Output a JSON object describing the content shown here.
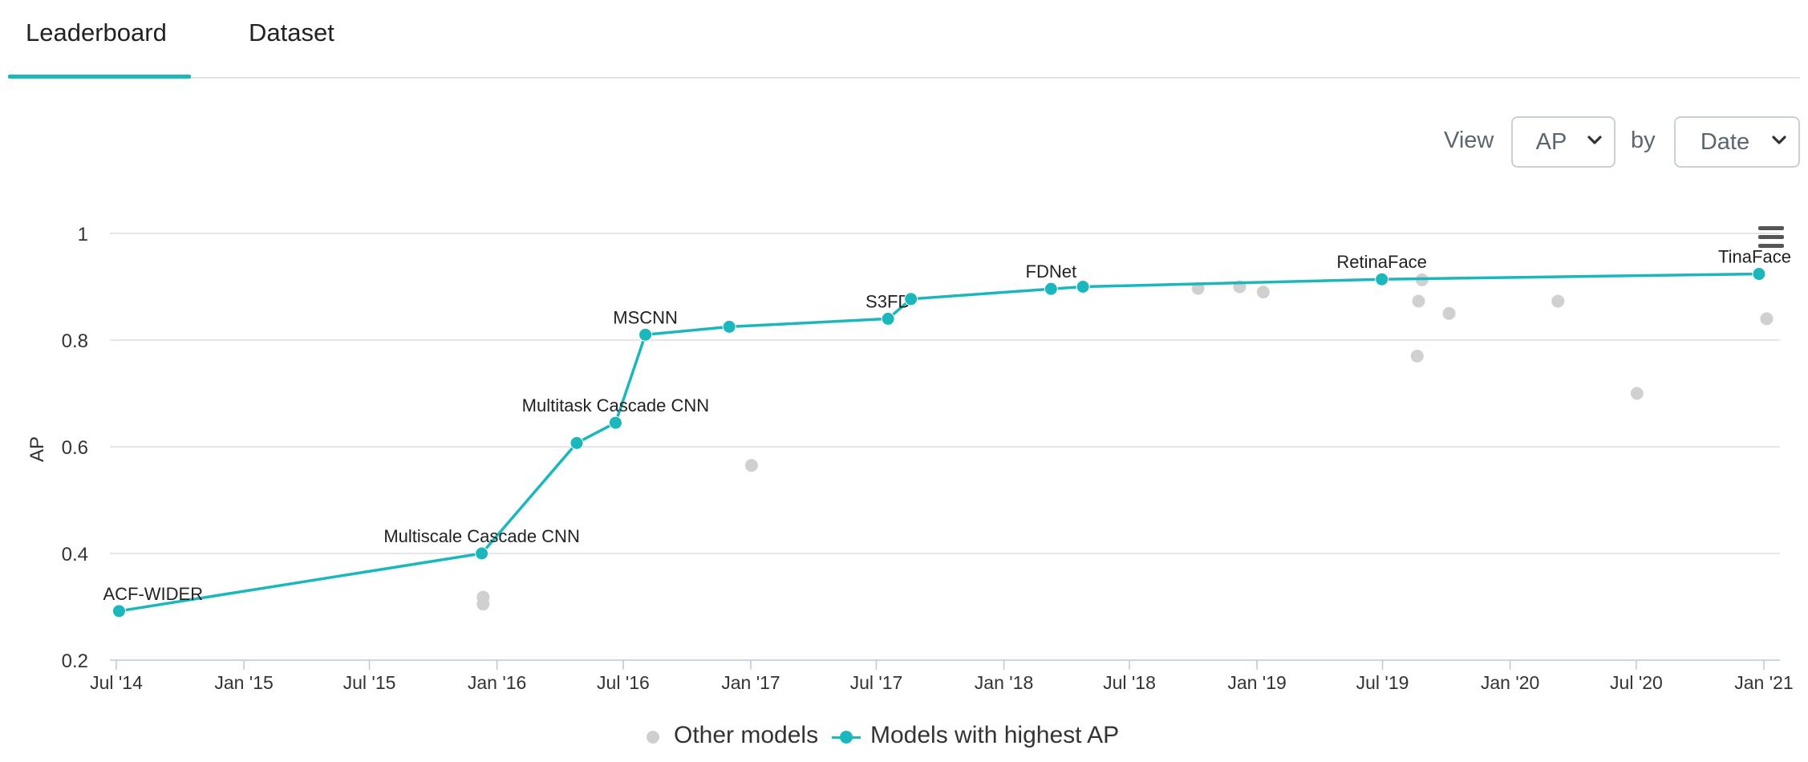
{
  "tabs": {
    "leaderboard": "Leaderboard",
    "dataset": "Dataset"
  },
  "controls": {
    "view_label": "View",
    "metric_value": "AP",
    "by_label": "by",
    "by_value": "Date"
  },
  "icons": {
    "menu": "hamburger-menu-icon",
    "select_arrow": "chevron-down-icon"
  },
  "colors": {
    "accent": "#1ab7bd",
    "other": "#d0d0d0",
    "grid": "#dddddd",
    "axis": "#b8c8e0"
  },
  "chart_data": {
    "type": "scatter",
    "ylabel": "AP",
    "xlabel": "",
    "ylim": [
      0.2,
      1.0
    ],
    "yticks": [
      0.2,
      0.4,
      0.6,
      0.8,
      1
    ],
    "ytick_labels": [
      "0.2",
      "0.4",
      "0.6",
      "0.8",
      "1"
    ],
    "xlim": [
      "2014-07-01",
      "2021-01-01"
    ],
    "xticks": [
      "2014-07-01",
      "2015-01-01",
      "2015-07-01",
      "2016-01-01",
      "2016-07-01",
      "2017-01-01",
      "2017-07-01",
      "2018-01-01",
      "2018-07-01",
      "2019-01-01",
      "2019-07-01",
      "2020-01-01",
      "2020-07-01",
      "2021-01-01"
    ],
    "xtick_labels": [
      "Jul '14",
      "Jan '15",
      "Jul '15",
      "Jan '16",
      "Jul '16",
      "Jan '17",
      "Jul '17",
      "Jan '18",
      "Jul '18",
      "Jan '19",
      "Jul '19",
      "Jan '20",
      "Jul '20",
      "Jan '21"
    ],
    "grid": true,
    "legend_position": "bottom-center",
    "series": [
      {
        "name": "Other models",
        "color": "#d0d0d0",
        "points": [
          {
            "x": "2015-12-12",
            "y": 0.318
          },
          {
            "x": "2015-12-12",
            "y": 0.305
          },
          {
            "x": "2017-01-02",
            "y": 0.565
          },
          {
            "x": "2018-10-08",
            "y": 0.897
          },
          {
            "x": "2018-12-07",
            "y": 0.9
          },
          {
            "x": "2019-01-10",
            "y": 0.89
          },
          {
            "x": "2019-08-20",
            "y": 0.77
          },
          {
            "x": "2019-08-22",
            "y": 0.873
          },
          {
            "x": "2019-08-27",
            "y": 0.913
          },
          {
            "x": "2019-10-05",
            "y": 0.85
          },
          {
            "x": "2020-03-10",
            "y": 0.873
          },
          {
            "x": "2020-07-02",
            "y": 0.7
          },
          {
            "x": "2021-01-05",
            "y": 0.84
          }
        ]
      },
      {
        "name": "Models with highest AP",
        "color": "#1ab7bd",
        "points": [
          {
            "x": "2014-07-05",
            "y": 0.292,
            "label": "ACF-WIDER"
          },
          {
            "x": "2015-12-10",
            "y": 0.4,
            "label": "Multiscale Cascade CNN"
          },
          {
            "x": "2016-04-25",
            "y": 0.607
          },
          {
            "x": "2016-06-20",
            "y": 0.645,
            "label": "Multitask Cascade CNN"
          },
          {
            "x": "2016-08-02",
            "y": 0.81,
            "label": "MSCNN"
          },
          {
            "x": "2016-12-01",
            "y": 0.825
          },
          {
            "x": "2017-07-18",
            "y": 0.84,
            "label": "S3FD"
          },
          {
            "x": "2017-08-20",
            "y": 0.877
          },
          {
            "x": "2018-03-10",
            "y": 0.896,
            "label": "FDNet"
          },
          {
            "x": "2018-04-25",
            "y": 0.9
          },
          {
            "x": "2019-06-30",
            "y": 0.914,
            "label": "RetinaFace"
          },
          {
            "x": "2020-12-25",
            "y": 0.924,
            "label": "TinaFace"
          }
        ]
      }
    ]
  }
}
